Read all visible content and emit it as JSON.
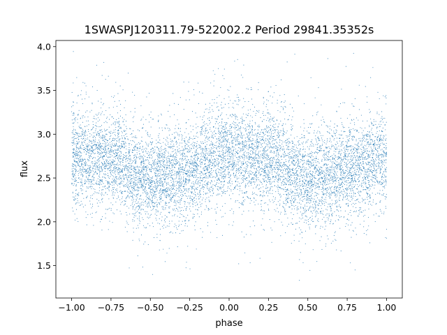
{
  "chart_data": {
    "type": "scatter",
    "title": "1SWASPJ120311.79-522002.2 Period 29841.35352s",
    "xlabel": "phase",
    "ylabel": "flux",
    "xlim": [
      -1.1,
      1.1
    ],
    "ylim": [
      1.13,
      4.07
    ],
    "x_ticks": [
      -1.0,
      -0.75,
      -0.5,
      -0.25,
      0.0,
      0.25,
      0.5,
      0.75,
      1.0
    ],
    "x_tick_labels": [
      "−1.00",
      "−0.75",
      "−0.50",
      "−0.25",
      "0.00",
      "0.25",
      "0.50",
      "0.75",
      "1.00"
    ],
    "y_ticks": [
      1.5,
      2.0,
      2.5,
      3.0,
      3.5,
      4.0
    ],
    "y_tick_labels": [
      "1.5",
      "2.0",
      "2.5",
      "3.0",
      "3.5",
      "4.0"
    ],
    "grid": false,
    "legend": "none",
    "marker_color": "#1f77b4",
    "series": [
      {
        "phase_range": [
          -1.0,
          1.0
        ],
        "trend": {
          "x": [
            -1.0,
            -0.75,
            -0.5,
            -0.25,
            0.0,
            0.25,
            0.5,
            0.75,
            1.0
          ],
          "y": [
            2.75,
            2.72,
            2.48,
            2.58,
            2.8,
            2.72,
            2.48,
            2.6,
            2.75
          ]
        },
        "spread": 0.27,
        "outlier_range": [
          1.3,
          3.95
        ],
        "point_count": 9000
      }
    ]
  }
}
